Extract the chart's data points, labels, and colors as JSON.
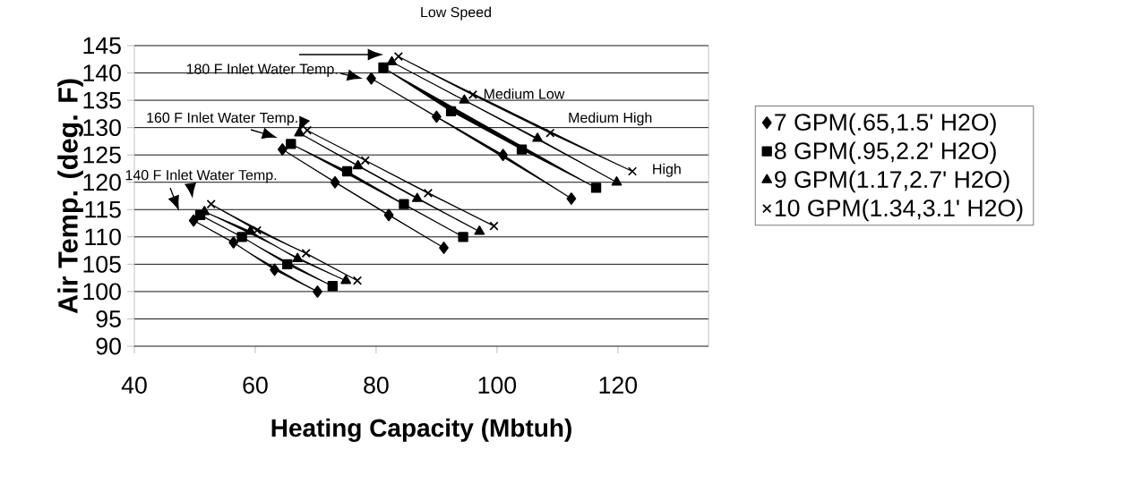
{
  "chart_data": {
    "type": "line",
    "xlabel": "Heating Capacity (Mbtuh)",
    "ylabel": "Air Temp. (deg. F)",
    "xlim": [
      40,
      135
    ],
    "xticks": [
      40,
      60,
      80,
      100,
      120
    ],
    "ylim": [
      90,
      145
    ],
    "yticks": [
      90,
      95,
      100,
      105,
      110,
      115,
      120,
      125,
      130,
      135,
      140,
      145
    ],
    "grid": "y",
    "legend": "right",
    "line_style": "solid",
    "annotations": [
      "Low Speed",
      "Medium  Low",
      "Medium High",
      "High",
      "180 F Inlet Water Temp.",
      "160 F Inlet Water Temp.",
      "140 F Inlet Water Temp."
    ],
    "series": [
      {
        "name": "7 GPM(.65,1.5' H2O)",
        "color": "#000000",
        "marker": "diamond",
        "x": [
          49.8,
          56.4,
          63.2,
          70.3,
          null,
          64.5,
          73.2,
          82.1,
          91.2,
          null,
          79.2,
          90.0,
          101.0,
          112.3
        ],
        "values": [
          113,
          109,
          104,
          100,
          null,
          126,
          120,
          114,
          108,
          null,
          139,
          132,
          125,
          117
        ]
      },
      {
        "name": "8 GPM(.95,2.2' H2O)",
        "color": "#000000",
        "marker": "square",
        "x": [
          50.9,
          57.8,
          65.3,
          72.8,
          null,
          65.9,
          75.2,
          84.6,
          94.4,
          null,
          81.2,
          92.4,
          104.1,
          116.4
        ],
        "values": [
          114,
          110,
          105,
          101,
          null,
          127,
          122,
          116,
          110,
          null,
          141,
          133,
          126,
          119
        ]
      },
      {
        "name": "9 GPM(1.17,2.7' H2O)",
        "color": "#000000",
        "marker": "triangle",
        "x": [
          51.6,
          59.2,
          67.0,
          75.0,
          null,
          67.3,
          77.0,
          86.8,
          97.1,
          null,
          82.6,
          94.6,
          106.7,
          119.8
        ],
        "values": [
          114.6,
          111,
          106,
          102,
          null,
          129,
          123,
          117,
          111,
          null,
          142,
          135,
          128,
          120
        ]
      },
      {
        "name": "10 GPM(1.34,3.1' H2O)",
        "color": "#000000",
        "marker": "cross",
        "x": [
          52.7,
          60.3,
          68.4,
          76.9,
          null,
          68.6,
          78.2,
          88.6,
          99.5,
          null,
          83.7,
          96.0,
          108.8,
          122.4
        ],
        "values": [
          116,
          111.2,
          107,
          102,
          null,
          129.5,
          124,
          118,
          112,
          null,
          143,
          136,
          129,
          122
        ]
      }
    ]
  }
}
